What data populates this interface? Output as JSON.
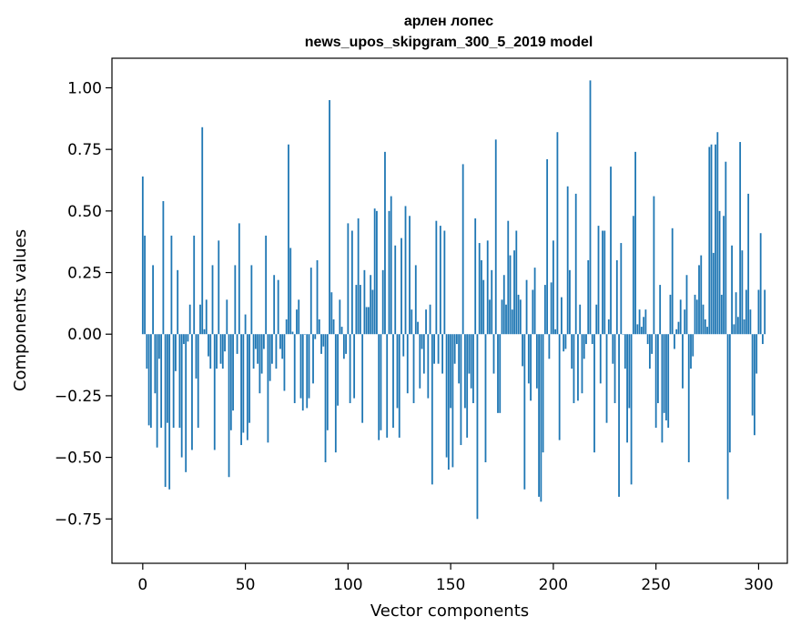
{
  "chart_data": {
    "type": "bar",
    "title_line1": "арлен лопес",
    "title_line2": "news_upos_skipgram_300_5_2019 model",
    "xlabel": "Vector components",
    "ylabel": "Components values",
    "xlim": [
      -15,
      314
    ],
    "ylim": [
      -0.93,
      1.12
    ],
    "xticks": [
      0,
      50,
      100,
      150,
      200,
      250,
      300
    ],
    "yticks": [
      -0.75,
      -0.5,
      -0.25,
      0.0,
      0.25,
      0.5,
      0.75,
      1.0
    ],
    "ytick_labels": [
      "−0.75",
      "−0.50",
      "−0.25",
      "0.00",
      "0.25",
      "0.50",
      "0.75",
      "1.00"
    ],
    "bar_color": "#1f77b4",
    "values": [
      0.64,
      0.4,
      -0.14,
      -0.37,
      -0.38,
      0.28,
      -0.24,
      -0.46,
      -0.1,
      -0.38,
      0.54,
      -0.62,
      -0.36,
      -0.63,
      0.4,
      -0.38,
      -0.15,
      0.26,
      -0.38,
      -0.5,
      -0.04,
      -0.56,
      -0.03,
      0.12,
      -0.47,
      0.4,
      -0.18,
      -0.38,
      0.12,
      0.84,
      0.02,
      0.14,
      -0.09,
      -0.14,
      0.28,
      -0.47,
      -0.14,
      0.38,
      -0.12,
      -0.14,
      -0.07,
      0.14,
      -0.58,
      -0.39,
      -0.31,
      0.28,
      -0.08,
      0.45,
      -0.45,
      -0.4,
      0.08,
      -0.43,
      -0.36,
      0.28,
      -0.14,
      -0.06,
      -0.12,
      -0.24,
      -0.16,
      -0.06,
      0.4,
      -0.44,
      -0.19,
      -0.12,
      0.24,
      -0.14,
      0.22,
      -0.06,
      -0.1,
      -0.23,
      0.06,
      0.77,
      0.35,
      0.01,
      -0.28,
      0.1,
      0.14,
      -0.26,
      -0.31,
      0.0,
      -0.3,
      -0.26,
      0.27,
      -0.2,
      -0.02,
      0.3,
      0.06,
      -0.08,
      -0.05,
      -0.52,
      -0.39,
      0.95,
      0.17,
      0.06,
      -0.48,
      -0.29,
      0.14,
      0.03,
      -0.1,
      -0.08,
      0.45,
      -0.28,
      0.42,
      -0.26,
      0.2,
      0.47,
      0.2,
      -0.36,
      0.26,
      0.11,
      0.11,
      0.24,
      0.18,
      0.51,
      0.5,
      -0.43,
      -0.39,
      0.26,
      0.74,
      -0.42,
      0.5,
      0.56,
      -0.38,
      0.36,
      -0.3,
      -0.42,
      0.39,
      -0.09,
      0.52,
      -0.24,
      0.48,
      0.1,
      -0.28,
      0.28,
      0.05,
      -0.22,
      -0.06,
      -0.16,
      0.1,
      -0.26,
      0.12,
      -0.61,
      -0.12,
      0.46,
      -0.12,
      0.44,
      -0.16,
      0.42,
      -0.5,
      -0.55,
      -0.3,
      -0.54,
      -0.12,
      -0.04,
      -0.2,
      -0.45,
      0.69,
      -0.3,
      -0.42,
      -0.16,
      -0.22,
      -0.28,
      0.47,
      -0.75,
      0.37,
      0.3,
      0.22,
      -0.52,
      0.38,
      0.14,
      0.26,
      -0.16,
      0.79,
      -0.32,
      -0.32,
      0.14,
      0.24,
      0.12,
      0.46,
      0.32,
      0.1,
      0.34,
      0.42,
      0.16,
      0.14,
      -0.13,
      -0.63,
      0.22,
      -0.2,
      -0.27,
      0.18,
      0.27,
      -0.22,
      -0.66,
      -0.68,
      -0.48,
      0.2,
      0.71,
      -0.1,
      0.21,
      0.38,
      0.02,
      0.82,
      -0.43,
      0.15,
      -0.07,
      -0.06,
      0.6,
      0.26,
      -0.14,
      -0.28,
      0.57,
      -0.27,
      0.12,
      -0.24,
      -0.1,
      -0.04,
      0.3,
      1.03,
      -0.04,
      -0.48,
      0.12,
      0.44,
      -0.2,
      0.42,
      0.42,
      -0.36,
      0.06,
      0.68,
      -0.12,
      -0.28,
      0.3,
      -0.66,
      0.37,
      0.0,
      -0.14,
      -0.44,
      -0.3,
      -0.61,
      0.48,
      0.74,
      0.04,
      0.1,
      0.03,
      0.07,
      0.1,
      -0.04,
      -0.14,
      -0.08,
      0.56,
      -0.38,
      -0.28,
      0.2,
      -0.44,
      -0.32,
      -0.35,
      -0.38,
      0.16,
      0.43,
      -0.06,
      0.02,
      0.05,
      0.14,
      -0.22,
      0.1,
      0.24,
      -0.52,
      -0.14,
      -0.09,
      0.16,
      0.14,
      0.28,
      0.32,
      0.12,
      0.06,
      0.03,
      0.76,
      0.77,
      0.33,
      0.77,
      0.82,
      0.5,
      0.16,
      0.48,
      0.7,
      -0.67,
      -0.48,
      0.36,
      0.04,
      0.17,
      0.07,
      0.78,
      0.34,
      0.06,
      0.18,
      0.57,
      0.1,
      -0.33,
      -0.41,
      -0.16,
      0.18,
      0.41,
      -0.04,
      0.18
    ]
  }
}
